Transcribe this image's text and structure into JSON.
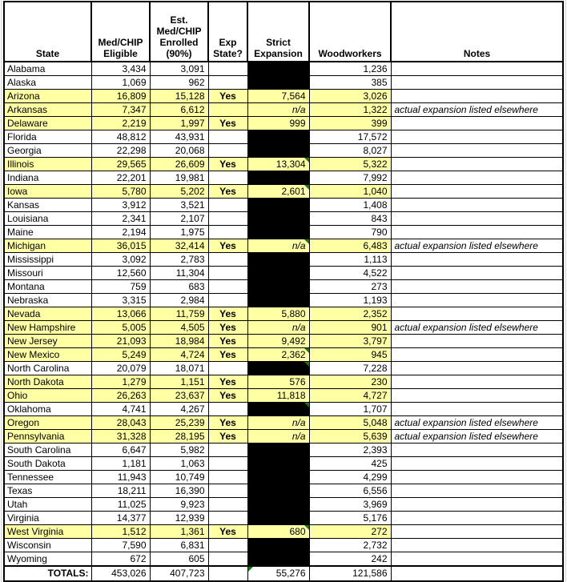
{
  "colors": {
    "highlight_yellow": "#FFFFA3",
    "blackout_cell": "#000000",
    "corner_marker_green": "#0E7B12",
    "border_black": "#000000",
    "faint_gridline_gray": "#D4D4D4"
  },
  "table": {
    "header": {
      "state": "State",
      "eligible": "Med/CHIP\nEligible",
      "enrolled": "Est.\nMed/CHIP\nEnrolled\n(90%)",
      "exp": "Exp\nState?",
      "strict": "Strict\nExpansion",
      "woodworkers": "Woodworkers",
      "notes": "Notes"
    }
  },
  "chart_data": {
    "type": "table",
    "title": "",
    "columns": [
      "State",
      "Med/CHIP Eligible",
      "Est. Med/CHIP Enrolled (90%)",
      "Exp State?",
      "Strict Expansion",
      "Woodworkers",
      "Notes"
    ],
    "rows": [
      {
        "state": "Alabama",
        "eligible": "3,434",
        "enrolled": "3,091",
        "exp": "",
        "strict": "",
        "strict_black": true,
        "woodworkers": "1,236",
        "notes": "",
        "highlight": false,
        "marker": ""
      },
      {
        "state": "Alaska",
        "eligible": "1,069",
        "enrolled": "962",
        "exp": "",
        "strict": "",
        "strict_black": true,
        "woodworkers": "385",
        "notes": "",
        "highlight": false,
        "marker": ""
      },
      {
        "state": "Arizona",
        "eligible": "16,809",
        "enrolled": "15,128",
        "exp": "Yes",
        "strict": "7,564",
        "strict_black": false,
        "woodworkers": "3,026",
        "notes": "",
        "highlight": true,
        "marker": ""
      },
      {
        "state": "Arkansas",
        "eligible": "7,347",
        "enrolled": "6,612",
        "exp": "",
        "strict": "n/a",
        "strict_black": false,
        "woodworkers": "1,322",
        "notes": "actual expansion listed elsewhere",
        "highlight": true,
        "marker": ""
      },
      {
        "state": "Delaware",
        "eligible": "2,219",
        "enrolled": "1,997",
        "exp": "Yes",
        "strict": "999",
        "strict_black": false,
        "woodworkers": "399",
        "notes": "",
        "highlight": true,
        "marker": ""
      },
      {
        "state": "Florida",
        "eligible": "48,812",
        "enrolled": "43,931",
        "exp": "",
        "strict": "",
        "strict_black": true,
        "woodworkers": "17,572",
        "notes": "",
        "highlight": false,
        "marker": ""
      },
      {
        "state": "Georgia",
        "eligible": "22,298",
        "enrolled": "20,068",
        "exp": "",
        "strict": "",
        "strict_black": true,
        "woodworkers": "8,027",
        "notes": "",
        "highlight": false,
        "marker": ""
      },
      {
        "state": "Illinois",
        "eligible": "29,565",
        "enrolled": "26,609",
        "exp": "Yes",
        "strict": "13,304",
        "strict_black": false,
        "woodworkers": "5,322",
        "notes": "",
        "highlight": true,
        "marker": "tr"
      },
      {
        "state": "Indiana",
        "eligible": "22,201",
        "enrolled": "19,981",
        "exp": "",
        "strict": "",
        "strict_black": true,
        "woodworkers": "7,992",
        "notes": "",
        "highlight": false,
        "marker": ""
      },
      {
        "state": "Iowa",
        "eligible": "5,780",
        "enrolled": "5,202",
        "exp": "Yes",
        "strict": "2,601",
        "strict_black": false,
        "woodworkers": "1,040",
        "notes": "",
        "highlight": true,
        "marker": "tr"
      },
      {
        "state": "Kansas",
        "eligible": "3,912",
        "enrolled": "3,521",
        "exp": "",
        "strict": "",
        "strict_black": true,
        "woodworkers": "1,408",
        "notes": "",
        "highlight": false,
        "marker": ""
      },
      {
        "state": "Louisiana",
        "eligible": "2,341",
        "enrolled": "2,107",
        "exp": "",
        "strict": "",
        "strict_black": true,
        "woodworkers": "843",
        "notes": "",
        "highlight": false,
        "marker": ""
      },
      {
        "state": "Maine",
        "eligible": "2,194",
        "enrolled": "1,975",
        "exp": "",
        "strict": "",
        "strict_black": true,
        "woodworkers": "790",
        "notes": "",
        "highlight": false,
        "marker": ""
      },
      {
        "state": "Michigan",
        "eligible": "36,015",
        "enrolled": "32,414",
        "exp": "Yes",
        "strict": "n/a",
        "strict_black": false,
        "woodworkers": "6,483",
        "notes": "actual expansion listed elsewhere",
        "highlight": true,
        "marker": "tr"
      },
      {
        "state": "Mississippi",
        "eligible": "3,092",
        "enrolled": "2,783",
        "exp": "",
        "strict": "",
        "strict_black": true,
        "woodworkers": "1,113",
        "notes": "",
        "highlight": false,
        "marker": ""
      },
      {
        "state": "Missouri",
        "eligible": "12,560",
        "enrolled": "11,304",
        "exp": "",
        "strict": "",
        "strict_black": true,
        "woodworkers": "4,522",
        "notes": "",
        "highlight": false,
        "marker": ""
      },
      {
        "state": "Montana",
        "eligible": "759",
        "enrolled": "683",
        "exp": "",
        "strict": "",
        "strict_black": true,
        "woodworkers": "273",
        "notes": "",
        "highlight": false,
        "marker": ""
      },
      {
        "state": "Nebraska",
        "eligible": "3,315",
        "enrolled": "2,984",
        "exp": "",
        "strict": "",
        "strict_black": true,
        "woodworkers": "1,193",
        "notes": "",
        "highlight": false,
        "marker": ""
      },
      {
        "state": "Nevada",
        "eligible": "13,066",
        "enrolled": "11,759",
        "exp": "Yes",
        "strict": "5,880",
        "strict_black": false,
        "woodworkers": "2,352",
        "notes": "",
        "highlight": true,
        "marker": ""
      },
      {
        "state": "New Hampshire",
        "eligible": "5,005",
        "enrolled": "4,505",
        "exp": "Yes",
        "strict": "n/a",
        "strict_black": false,
        "woodworkers": "901",
        "notes": "actual expansion listed elsewhere",
        "highlight": true,
        "marker": ""
      },
      {
        "state": "New Jersey",
        "eligible": "21,093",
        "enrolled": "18,984",
        "exp": "Yes",
        "strict": "9,492",
        "strict_black": false,
        "woodworkers": "3,797",
        "notes": "",
        "highlight": true,
        "marker": ""
      },
      {
        "state": "New Mexico",
        "eligible": "5,249",
        "enrolled": "4,724",
        "exp": "Yes",
        "strict": "2,362",
        "strict_black": false,
        "woodworkers": "945",
        "notes": "",
        "highlight": true,
        "marker": "tr"
      },
      {
        "state": "North Carolina",
        "eligible": "20,079",
        "enrolled": "18,071",
        "exp": "",
        "strict": "",
        "strict_black": true,
        "woodworkers": "7,228",
        "notes": "",
        "highlight": false,
        "marker": "tr"
      },
      {
        "state": "North Dakota",
        "eligible": "1,279",
        "enrolled": "1,151",
        "exp": "Yes",
        "strict": "576",
        "strict_black": false,
        "woodworkers": "230",
        "notes": "",
        "highlight": true,
        "marker": ""
      },
      {
        "state": "Ohio",
        "eligible": "26,263",
        "enrolled": "23,637",
        "exp": "Yes",
        "strict": "11,818",
        "strict_black": false,
        "woodworkers": "4,727",
        "notes": "",
        "highlight": true,
        "marker": ""
      },
      {
        "state": "Oklahoma",
        "eligible": "4,741",
        "enrolled": "4,267",
        "exp": "",
        "strict": "",
        "strict_black": true,
        "woodworkers": "1,707",
        "notes": "",
        "highlight": false,
        "marker": "tr"
      },
      {
        "state": "Oregon",
        "eligible": "28,043",
        "enrolled": "25,239",
        "exp": "Yes",
        "strict": "n/a",
        "strict_black": false,
        "woodworkers": "5,048",
        "notes": "actual expansion listed elsewhere",
        "highlight": true,
        "marker": ""
      },
      {
        "state": "Pennsylvania",
        "eligible": "31,328",
        "enrolled": "28,195",
        "exp": "Yes",
        "strict": "n/a",
        "strict_black": false,
        "woodworkers": "5,639",
        "notes": "actual expansion listed elsewhere",
        "highlight": true,
        "marker": ""
      },
      {
        "state": "South Carolina",
        "eligible": "6,647",
        "enrolled": "5,982",
        "exp": "",
        "strict": "",
        "strict_black": true,
        "woodworkers": "2,393",
        "notes": "",
        "highlight": false,
        "marker": ""
      },
      {
        "state": "South Dakota",
        "eligible": "1,181",
        "enrolled": "1,063",
        "exp": "",
        "strict": "",
        "strict_black": true,
        "woodworkers": "425",
        "notes": "",
        "highlight": false,
        "marker": ""
      },
      {
        "state": "Tennessee",
        "eligible": "11,943",
        "enrolled": "10,749",
        "exp": "",
        "strict": "",
        "strict_black": true,
        "woodworkers": "4,299",
        "notes": "",
        "highlight": false,
        "marker": ""
      },
      {
        "state": "Texas",
        "eligible": "18,211",
        "enrolled": "16,390",
        "exp": "",
        "strict": "",
        "strict_black": true,
        "woodworkers": "6,556",
        "notes": "",
        "highlight": false,
        "marker": ""
      },
      {
        "state": "Utah",
        "eligible": "11,025",
        "enrolled": "9,923",
        "exp": "",
        "strict": "",
        "strict_black": true,
        "woodworkers": "3,969",
        "notes": "",
        "highlight": false,
        "marker": ""
      },
      {
        "state": "Virginia",
        "eligible": "14,377",
        "enrolled": "12,939",
        "exp": "",
        "strict": "",
        "strict_black": true,
        "woodworkers": "5,176",
        "notes": "",
        "highlight": false,
        "marker": ""
      },
      {
        "state": "West Virginia",
        "eligible": "1,512",
        "enrolled": "1,361",
        "exp": "Yes",
        "strict": "680",
        "strict_black": false,
        "woodworkers": "272",
        "notes": "",
        "highlight": true,
        "marker": "tr"
      },
      {
        "state": "Wisconsin",
        "eligible": "7,590",
        "enrolled": "6,831",
        "exp": "",
        "strict": "",
        "strict_black": true,
        "woodworkers": "2,732",
        "notes": "",
        "highlight": false,
        "marker": ""
      },
      {
        "state": "Wyoming",
        "eligible": "672",
        "enrolled": "605",
        "exp": "",
        "strict": "",
        "strict_black": true,
        "woodworkers": "242",
        "notes": "",
        "highlight": false,
        "marker": ""
      }
    ],
    "totals": {
      "state": "TOTALS:",
      "eligible": "453,026",
      "enrolled": "407,723",
      "exp": "",
      "strict": "55,276",
      "strict_black": false,
      "woodworkers": "121,586",
      "notes": "",
      "highlight": false,
      "marker": "tl"
    }
  }
}
